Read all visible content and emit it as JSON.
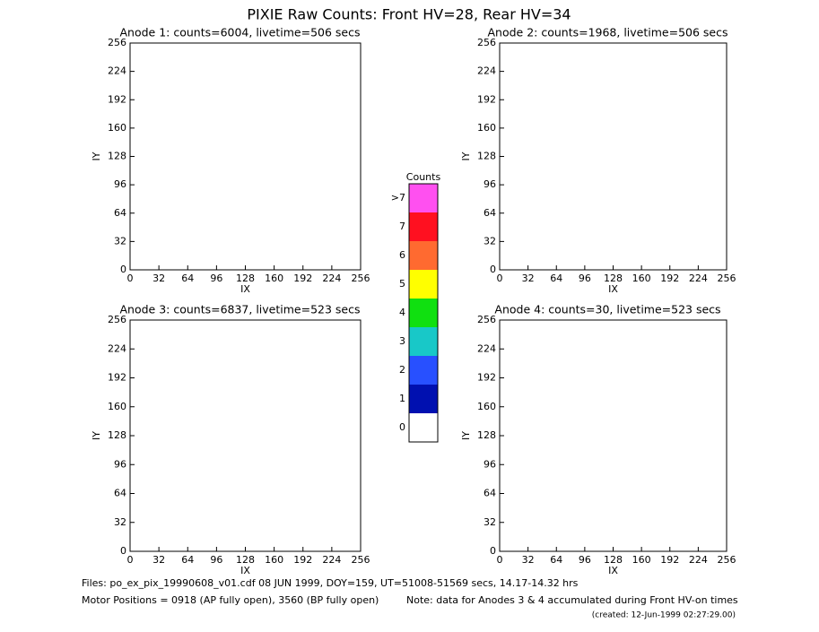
{
  "chart_data": [
    {
      "type": "image",
      "title": "Anode 1: counts=6004, livetime=506 secs",
      "xlabel": "IX",
      "ylabel": "IY",
      "xlim": [
        0,
        256
      ],
      "ylim": [
        0,
        256
      ],
      "xticks": [
        0,
        32,
        64,
        96,
        128,
        160,
        192,
        224,
        256
      ],
      "yticks": [
        0,
        32,
        64,
        96,
        128,
        160,
        192,
        224,
        256
      ]
    },
    {
      "type": "image",
      "title": "Anode 2: counts=1968, livetime=506 secs",
      "xlabel": "IX",
      "ylabel": "IY",
      "xlim": [
        0,
        256
      ],
      "ylim": [
        0,
        256
      ],
      "xticks": [
        0,
        32,
        64,
        96,
        128,
        160,
        192,
        224,
        256
      ],
      "yticks": [
        0,
        32,
        64,
        96,
        128,
        160,
        192,
        224,
        256
      ]
    },
    {
      "type": "image",
      "title": "Anode 3: counts=6837, livetime=523 secs",
      "xlabel": "IX",
      "ylabel": "IY",
      "xlim": [
        0,
        256
      ],
      "ylim": [
        0,
        256
      ],
      "xticks": [
        0,
        32,
        64,
        96,
        128,
        160,
        192,
        224,
        256
      ],
      "yticks": [
        0,
        32,
        64,
        96,
        128,
        160,
        192,
        224,
        256
      ]
    },
    {
      "type": "image",
      "title": "Anode 4: counts=30, livetime=523 secs",
      "xlabel": "IX",
      "ylabel": "IY",
      "xlim": [
        0,
        256
      ],
      "ylim": [
        0,
        256
      ],
      "xticks": [
        0,
        32,
        64,
        96,
        128,
        160,
        192,
        224,
        256
      ],
      "yticks": [
        0,
        32,
        64,
        96,
        128,
        160,
        192,
        224,
        256
      ]
    }
  ],
  "title": "PIXIE Raw Counts:  Front HV=28, Rear HV=34",
  "colorbar": {
    "title": "Counts",
    "labels": [
      "0",
      "1",
      "2",
      "3",
      "4",
      "5",
      "6",
      "7",
      ">7"
    ],
    "colors": [
      "#ffffff",
      "#0010b0",
      "#2850ff",
      "#18c8c8",
      "#10e010",
      "#ffff00",
      "#ff6a30",
      "#ff1020",
      "#ff50f0"
    ]
  },
  "footer": {
    "files": "Files: po_ex_pix_19990608_v01.cdf   08 JUN 1999, DOY=159, UT=51008-51569 secs, 14.17-14.32 hrs",
    "motor": "Motor Positions = 0918 (AP fully open), 3560 (BP fully open)",
    "note": "Note: data for Anodes 3 & 4 accumulated during Front HV-on times",
    "created": "(created: 12-Jun-1999 02:27:29.00)"
  }
}
